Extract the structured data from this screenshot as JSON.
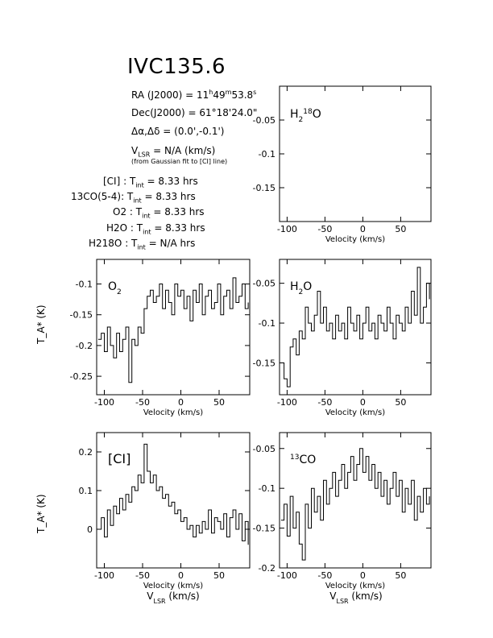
{
  "header": {
    "title": "IVC135.6",
    "ra_label": "RA (J2000) = ",
    "ra_h": "11",
    "ra_h_unit": "h",
    "ra_m": "49",
    "ra_m_unit": "m",
    "ra_s": "53.8",
    "ra_s_unit": "s",
    "dec_label": "Dec(J2000) = ",
    "dec_value": "61°18'24.0\"",
    "offset_label": "Δα,Δδ = ",
    "offset_value": "(0.0',-0.1')",
    "vlsr_prefix": "V",
    "vlsr_sub": "LSR",
    "vlsr_value": " = N/A  (km/s)",
    "vlsr_note": "(from Gaussian fit to [CI] line)"
  },
  "integration_times": [
    {
      "species": "[CI]",
      "value": "8.33 hrs"
    },
    {
      "species": "13CO(5-4)",
      "value": "8.33 hrs"
    },
    {
      "species": "O2",
      "value": "8.33 hrs"
    },
    {
      "species": "H2O",
      "value": "8.33 hrs"
    },
    {
      "species": "H218O",
      "value": "N/A hrs"
    }
  ],
  "tint_label": "T",
  "tint_sub": "int",
  "ylabel_left": "T_A* (K)",
  "xlabel": "Velocity (km/s)",
  "xlabel_lsr": "V_LSR (km/s)",
  "chart_data": [
    {
      "id": "h218o",
      "type": "line",
      "label": "H2 18O",
      "xlim": [
        -110,
        90
      ],
      "ylim": [
        -0.2,
        0.0
      ],
      "yticks": [
        -0.05,
        -0.1,
        -0.15
      ],
      "ytick_labels": [
        "-0.05",
        "-0.1",
        "-0.15"
      ],
      "xticks": [
        -100,
        -50,
        0,
        50
      ],
      "xtick_labels": [
        "-100",
        "-50",
        "0",
        "50"
      ],
      "series": []
    },
    {
      "id": "o2",
      "type": "line",
      "label": "O2",
      "xlim": [
        -110,
        90
      ],
      "ylim": [
        -0.28,
        -0.06
      ],
      "yticks": [
        -0.1,
        -0.15,
        -0.2,
        -0.25
      ],
      "ytick_labels": [
        "-0.1",
        "-0.15",
        "-0.2",
        "-0.25"
      ],
      "xticks": [
        -100,
        -50,
        0,
        50
      ],
      "xtick_labels": [
        "-100",
        "-50",
        "0",
        "50"
      ],
      "series": [
        {
          "x": [
            -108,
            -104,
            -100,
            -96,
            -92,
            -88,
            -84,
            -80,
            -76,
            -72,
            -68,
            -64,
            -60,
            -56,
            -52,
            -48,
            -44,
            -40,
            -36,
            -32,
            -28,
            -24,
            -20,
            -16,
            -12,
            -8,
            -4,
            0,
            4,
            8,
            12,
            16,
            20,
            24,
            28,
            32,
            36,
            40,
            44,
            48,
            52,
            56,
            60,
            64,
            68,
            72,
            76,
            80,
            84,
            88
          ],
          "y": [
            -0.19,
            -0.18,
            -0.21,
            -0.17,
            -0.2,
            -0.22,
            -0.18,
            -0.21,
            -0.19,
            -0.17,
            -0.26,
            -0.19,
            -0.2,
            -0.17,
            -0.18,
            -0.14,
            -0.12,
            -0.11,
            -0.13,
            -0.12,
            -0.1,
            -0.14,
            -0.11,
            -0.13,
            -0.15,
            -0.1,
            -0.12,
            -0.11,
            -0.14,
            -0.12,
            -0.16,
            -0.11,
            -0.13,
            -0.1,
            -0.15,
            -0.12,
            -0.11,
            -0.14,
            -0.13,
            -0.1,
            -0.15,
            -0.12,
            -0.11,
            -0.14,
            -0.09,
            -0.13,
            -0.12,
            -0.1,
            -0.14,
            -0.13
          ]
        }
      ]
    },
    {
      "id": "h2o",
      "type": "line",
      "label": "H2O",
      "xlim": [
        -110,
        90
      ],
      "ylim": [
        -0.19,
        -0.02
      ],
      "yticks": [
        -0.05,
        -0.1,
        -0.15
      ],
      "ytick_labels": [
        "-0.05",
        "-0.1",
        "-0.15"
      ],
      "xticks": [
        -100,
        -50,
        0,
        50
      ],
      "xtick_labels": [
        "-100",
        "-50",
        "0",
        "50"
      ],
      "series": [
        {
          "x": [
            -108,
            -104,
            -100,
            -96,
            -92,
            -88,
            -84,
            -80,
            -76,
            -72,
            -68,
            -64,
            -60,
            -56,
            -52,
            -48,
            -44,
            -40,
            -36,
            -32,
            -28,
            -24,
            -20,
            -16,
            -12,
            -8,
            -4,
            0,
            4,
            8,
            12,
            16,
            20,
            24,
            28,
            32,
            36,
            40,
            44,
            48,
            52,
            56,
            60,
            64,
            68,
            72,
            76,
            80,
            84,
            88
          ],
          "y": [
            -0.15,
            -0.17,
            -0.18,
            -0.13,
            -0.12,
            -0.14,
            -0.11,
            -0.12,
            -0.08,
            -0.1,
            -0.11,
            -0.09,
            -0.06,
            -0.1,
            -0.08,
            -0.11,
            -0.1,
            -0.12,
            -0.09,
            -0.11,
            -0.1,
            -0.12,
            -0.08,
            -0.1,
            -0.11,
            -0.09,
            -0.12,
            -0.1,
            -0.08,
            -0.11,
            -0.1,
            -0.12,
            -0.09,
            -0.1,
            -0.11,
            -0.08,
            -0.1,
            -0.12,
            -0.09,
            -0.1,
            -0.11,
            -0.08,
            -0.1,
            -0.06,
            -0.09,
            -0.03,
            -0.1,
            -0.08,
            -0.05,
            -0.07
          ]
        }
      ]
    },
    {
      "id": "ci",
      "type": "line",
      "label": "[CI]",
      "xlim": [
        -110,
        90
      ],
      "ylim": [
        -0.1,
        0.25
      ],
      "yticks": [
        0.2,
        0.1,
        0.0
      ],
      "ytick_labels": [
        "0.2",
        "0.1",
        "0"
      ],
      "xticks": [
        -100,
        -50,
        0,
        50
      ],
      "xtick_labels": [
        "-100",
        "-50",
        "0",
        "50"
      ],
      "series": [
        {
          "x": [
            -108,
            -104,
            -100,
            -96,
            -92,
            -88,
            -84,
            -80,
            -76,
            -72,
            -68,
            -64,
            -60,
            -56,
            -52,
            -48,
            -44,
            -40,
            -36,
            -32,
            -28,
            -24,
            -20,
            -16,
            -12,
            -8,
            -4,
            0,
            4,
            8,
            12,
            16,
            20,
            24,
            28,
            32,
            36,
            40,
            44,
            48,
            52,
            56,
            60,
            64,
            68,
            72,
            76,
            80,
            84,
            88
          ],
          "y": [
            0.0,
            0.03,
            -0.02,
            0.05,
            0.01,
            0.06,
            0.04,
            0.08,
            0.05,
            0.09,
            0.07,
            0.11,
            0.1,
            0.14,
            0.12,
            0.22,
            0.15,
            0.12,
            0.14,
            0.1,
            0.11,
            0.08,
            0.09,
            0.06,
            0.07,
            0.04,
            0.05,
            0.02,
            0.03,
            0.0,
            0.01,
            -0.02,
            0.01,
            -0.01,
            0.02,
            0.0,
            0.05,
            -0.01,
            0.03,
            0.02,
            0.0,
            0.04,
            -0.02,
            0.03,
            0.05,
            0.0,
            0.04,
            -0.03,
            0.02,
            -0.04
          ]
        }
      ]
    },
    {
      "id": "13co",
      "type": "line",
      "label": "13CO",
      "xlim": [
        -110,
        90
      ],
      "ylim": [
        -0.2,
        -0.03
      ],
      "yticks": [
        -0.05,
        -0.1,
        -0.15,
        -0.2
      ],
      "ytick_labels": [
        "-0.05",
        "-0.1",
        "-0.15",
        "-0.2"
      ],
      "xticks": [
        -100,
        -50,
        0,
        50
      ],
      "xtick_labels": [
        "-100",
        "-50",
        "0",
        "50"
      ],
      "series": [
        {
          "x": [
            -108,
            -104,
            -100,
            -96,
            -92,
            -88,
            -84,
            -80,
            -76,
            -72,
            -68,
            -64,
            -60,
            -56,
            -52,
            -48,
            -44,
            -40,
            -36,
            -32,
            -28,
            -24,
            -20,
            -16,
            -12,
            -8,
            -4,
            0,
            4,
            8,
            12,
            16,
            20,
            24,
            28,
            32,
            36,
            40,
            44,
            48,
            52,
            56,
            60,
            64,
            68,
            72,
            76,
            80,
            84,
            88
          ],
          "y": [
            -0.14,
            -0.12,
            -0.16,
            -0.11,
            -0.15,
            -0.13,
            -0.17,
            -0.19,
            -0.12,
            -0.15,
            -0.1,
            -0.13,
            -0.11,
            -0.14,
            -0.09,
            -0.12,
            -0.1,
            -0.08,
            -0.11,
            -0.09,
            -0.07,
            -0.1,
            -0.08,
            -0.06,
            -0.09,
            -0.07,
            -0.05,
            -0.08,
            -0.06,
            -0.09,
            -0.07,
            -0.1,
            -0.08,
            -0.11,
            -0.09,
            -0.12,
            -0.1,
            -0.08,
            -0.11,
            -0.09,
            -0.13,
            -0.1,
            -0.12,
            -0.09,
            -0.14,
            -0.11,
            -0.13,
            -0.1,
            -0.12,
            -0.11
          ]
        }
      ]
    }
  ]
}
